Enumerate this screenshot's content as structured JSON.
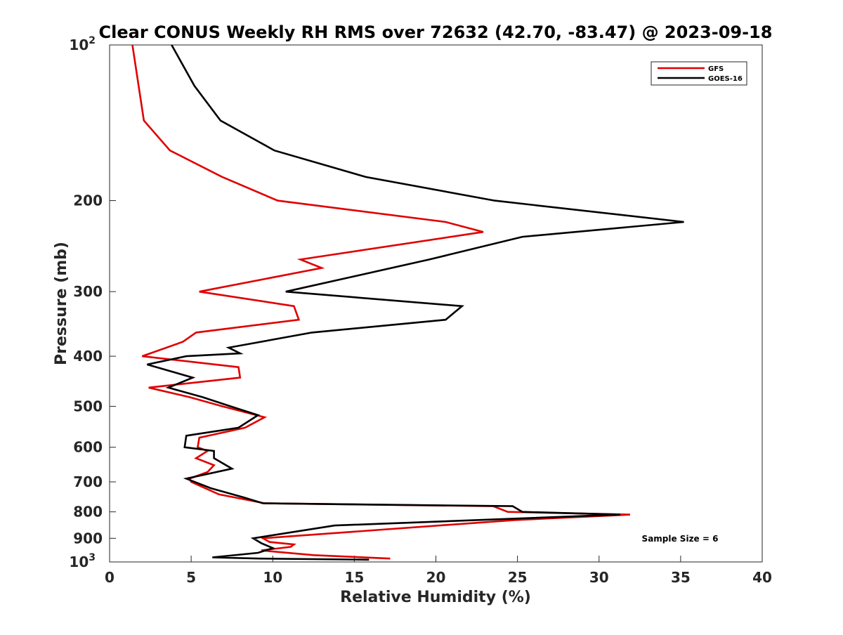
{
  "chart_data": {
    "type": "line",
    "title": "Clear CONUS Weekly RH RMS over 72632 (42.70, -83.47) @ 2023-09-18",
    "xlabel": "Relative Humidity (%)",
    "ylabel": "Pressure (mb)",
    "xlim": [
      0,
      40
    ],
    "ylim": [
      100,
      1000
    ],
    "y_scale": "log",
    "y_reversed": true,
    "x_ticks": [
      {
        "value": 0,
        "label": "0"
      },
      {
        "value": 5,
        "label": "5"
      },
      {
        "value": 10,
        "label": "10"
      },
      {
        "value": 15,
        "label": "15"
      },
      {
        "value": 20,
        "label": "20"
      },
      {
        "value": 25,
        "label": "25"
      },
      {
        "value": 30,
        "label": "30"
      },
      {
        "value": 35,
        "label": "35"
      },
      {
        "value": 40,
        "label": "40"
      }
    ],
    "y_ticks": [
      {
        "value": 100,
        "label": "10",
        "sup": "2"
      },
      {
        "value": 200,
        "label": "200",
        "sup": ""
      },
      {
        "value": 300,
        "label": "300",
        "sup": ""
      },
      {
        "value": 400,
        "label": "400",
        "sup": ""
      },
      {
        "value": 500,
        "label": "500",
        "sup": ""
      },
      {
        "value": 600,
        "label": "600",
        "sup": ""
      },
      {
        "value": 700,
        "label": "700",
        "sup": ""
      },
      {
        "value": 800,
        "label": "800",
        "sup": ""
      },
      {
        "value": 900,
        "label": "900",
        "sup": ""
      },
      {
        "value": 1000,
        "label": "10",
        "sup": "3"
      }
    ],
    "grid": false,
    "legend_position": "top-right",
    "annotation": "Sample Size = 6",
    "series": [
      {
        "name": "GFS",
        "color": "#e00000",
        "points": [
          [
            1.4,
            100
          ],
          [
            2.1,
            140
          ],
          [
            3.7,
            160
          ],
          [
            6.9,
            180
          ],
          [
            10.3,
            200
          ],
          [
            20.6,
            220
          ],
          [
            22.9,
            230
          ],
          [
            11.7,
            260
          ],
          [
            13.0,
            270
          ],
          [
            5.5,
            300
          ],
          [
            11.3,
            320
          ],
          [
            11.6,
            340
          ],
          [
            5.3,
            360
          ],
          [
            4.5,
            375
          ],
          [
            2.0,
            400
          ],
          [
            7.9,
            420
          ],
          [
            8.0,
            440
          ],
          [
            2.4,
            460
          ],
          [
            4.9,
            480
          ],
          [
            6.9,
            500
          ],
          [
            9.5,
            525
          ],
          [
            8.3,
            550
          ],
          [
            5.5,
            575
          ],
          [
            5.4,
            600
          ],
          [
            6.0,
            610
          ],
          [
            5.3,
            630
          ],
          [
            6.4,
            650
          ],
          [
            6.0,
            670
          ],
          [
            4.9,
            690
          ],
          [
            5.0,
            700
          ],
          [
            6.7,
            740
          ],
          [
            9.5,
            770
          ],
          [
            23.5,
            780
          ],
          [
            24.4,
            800
          ],
          [
            31.9,
            810
          ],
          [
            24.8,
            830
          ],
          [
            9.4,
            900
          ],
          [
            9.8,
            915
          ],
          [
            11.3,
            925
          ],
          [
            11.1,
            935
          ],
          [
            9.3,
            950
          ],
          [
            12.5,
            970
          ],
          [
            17.2,
            985
          ]
        ]
      },
      {
        "name": "GOES-16",
        "color": "#000000",
        "points": [
          [
            3.8,
            100
          ],
          [
            5.2,
            120
          ],
          [
            6.8,
            140
          ],
          [
            10.1,
            160
          ],
          [
            15.7,
            180
          ],
          [
            23.6,
            200
          ],
          [
            35.2,
            220
          ],
          [
            25.3,
            235
          ],
          [
            19.6,
            260
          ],
          [
            10.8,
            300
          ],
          [
            21.6,
            320
          ],
          [
            20.6,
            340
          ],
          [
            12.4,
            360
          ],
          [
            7.3,
            385
          ],
          [
            8.0,
            395
          ],
          [
            4.7,
            400
          ],
          [
            2.3,
            415
          ],
          [
            5.1,
            440
          ],
          [
            3.6,
            460
          ],
          [
            5.7,
            480
          ],
          [
            7.4,
            500
          ],
          [
            9.1,
            520
          ],
          [
            7.9,
            550
          ],
          [
            4.7,
            570
          ],
          [
            4.6,
            600
          ],
          [
            6.4,
            610
          ],
          [
            6.4,
            630
          ],
          [
            7.5,
            660
          ],
          [
            4.7,
            690
          ],
          [
            6.2,
            720
          ],
          [
            8.2,
            750
          ],
          [
            9.4,
            770
          ],
          [
            24.7,
            780
          ],
          [
            25.3,
            800
          ],
          [
            31.3,
            810
          ],
          [
            13.8,
            850
          ],
          [
            8.8,
            900
          ],
          [
            9.3,
            920
          ],
          [
            10.0,
            940
          ],
          [
            9.1,
            960
          ],
          [
            6.3,
            980
          ],
          [
            9.2,
            985
          ],
          [
            15.9,
            990
          ]
        ]
      }
    ]
  }
}
